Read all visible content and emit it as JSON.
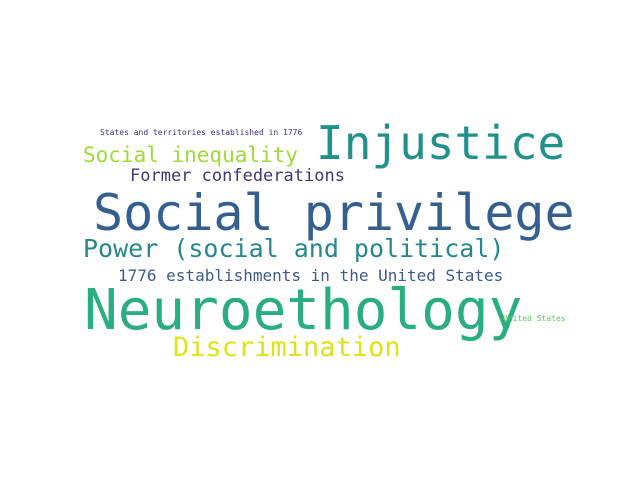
{
  "words": [
    {
      "text": "States and territories established in 1776",
      "color": "#472d7b"
    },
    {
      "text": "Injustice",
      "color": "#21918c"
    },
    {
      "text": "Social inequality",
      "color": "#a0da39"
    },
    {
      "text": "Former confederations",
      "color": "#3b3a76"
    },
    {
      "text": "Social privilege",
      "color": "#355f8d"
    },
    {
      "text": "Power (social and political)",
      "color": "#26888e"
    },
    {
      "text": "1776 establishments in the United States",
      "color": "#3e5b8a"
    },
    {
      "text": "Neuroethology",
      "color": "#2bae7f"
    },
    {
      "text": "United States",
      "color": "#5ec962"
    },
    {
      "text": "Discrimination",
      "color": "#dce319"
    }
  ]
}
